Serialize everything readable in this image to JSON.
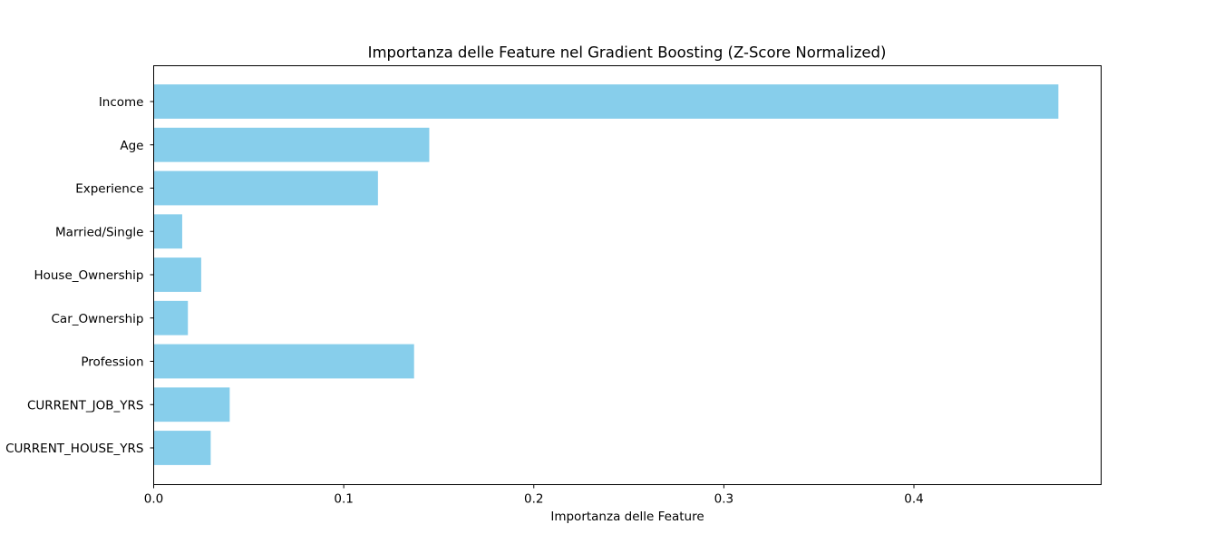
{
  "chart_data": {
    "type": "bar",
    "orientation": "horizontal",
    "title": "Importanza delle Feature nel Gradient Boosting (Z-Score Normalized)",
    "xlabel": "Importanza delle Feature",
    "ylabel": "",
    "categories": [
      "Income",
      "Age",
      "Experience",
      "Married/Single",
      "House_Ownership",
      "Car_Ownership",
      "Profession",
      "CURRENT_JOB_YRS",
      "CURRENT_HOUSE_YRS"
    ],
    "values": [
      0.476,
      0.145,
      0.118,
      0.015,
      0.025,
      0.018,
      0.137,
      0.04,
      0.03
    ],
    "xlim": [
      0,
      0.4985
    ],
    "xticks": [
      0.0,
      0.1,
      0.2,
      0.3,
      0.4
    ],
    "xtick_labels": [
      "0.0",
      "0.1",
      "0.2",
      "0.3",
      "0.4"
    ],
    "bar_color": "#87ceeb",
    "grid": false,
    "legend": "none"
  }
}
